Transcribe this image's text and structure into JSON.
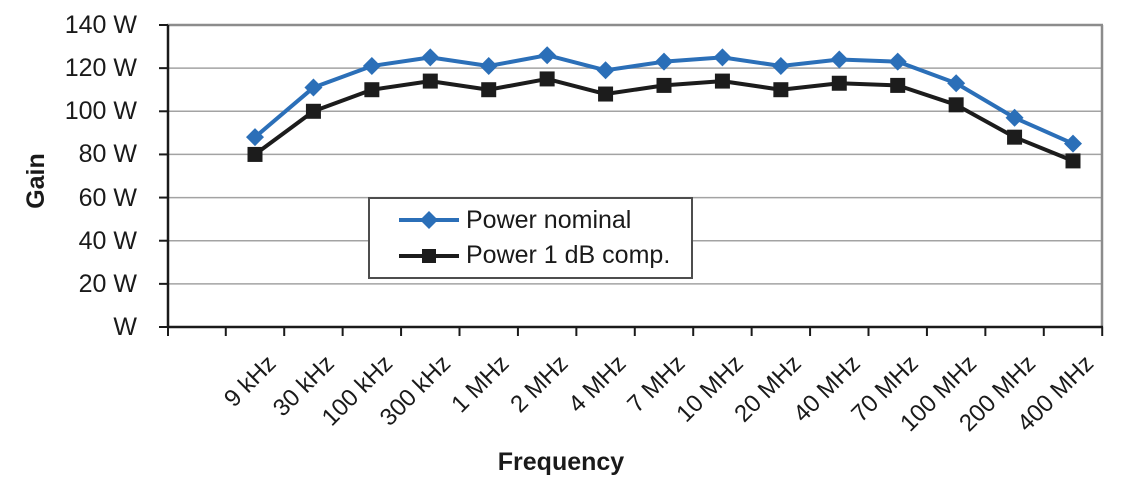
{
  "chart_data": {
    "type": "line",
    "title": "",
    "xlabel": "Frequency",
    "ylabel": "Gain",
    "categories": [
      "9 kHz",
      "30 kHz",
      "100 kHz",
      "300 kHz",
      "1 MHz",
      "2 MHz",
      "4 MHz",
      "7 MHz",
      "10 MHz",
      "20 MHz",
      "40 MHz",
      "70 MHz",
      "100 MHz",
      "200 MHz",
      "400 MHz"
    ],
    "series": [
      {
        "name": "Power nominal",
        "marker": "diamond",
        "color": "#2B6FB8",
        "values": [
          88,
          111,
          121,
          125,
          121,
          126,
          119,
          123,
          125,
          121,
          124,
          123,
          113,
          97,
          85
        ]
      },
      {
        "name": "Power 1 dB comp.",
        "marker": "square",
        "color": "#1C1C1C",
        "values": [
          80,
          100,
          110,
          114,
          110,
          115,
          108,
          112,
          114,
          110,
          113,
          112,
          103,
          88,
          77
        ]
      }
    ],
    "y_axis": [
      {
        "label": "140 W",
        "value": 140
      },
      {
        "label": "120 W",
        "value": 120
      },
      {
        "label": "100 W",
        "value": 100
      },
      {
        "label": "80 W",
        "value": 80
      },
      {
        "label": "60 W",
        "value": 60
      },
      {
        "label": "40 W",
        "value": 40
      },
      {
        "label": "20 W",
        "value": 20
      },
      {
        "label": "W",
        "value": 0
      }
    ],
    "ylim": [
      0,
      140
    ],
    "grid": "horizontal",
    "legend_position": "inside-center-left"
  },
  "colors": {
    "gridline": "#A3A3A3",
    "frame_gray": "#8C8C8C",
    "axis": "#1A1A1A",
    "background": "#FFFFFF",
    "text": "#1A1A1A"
  }
}
